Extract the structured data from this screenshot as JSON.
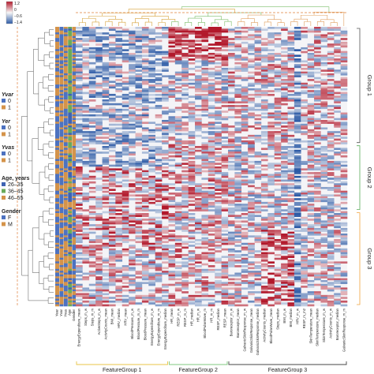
{
  "chart_data": {
    "type": "heatmap",
    "title": "",
    "xlabel": "",
    "ylabel": "",
    "color_scale": {
      "ticks": [
        "1.2",
        "0",
        "−0.6",
        "−1.4"
      ],
      "colors": [
        "#b2182b",
        "#f7f7f7",
        "#2c5aa6"
      ],
      "range": [
        -1.4,
        1.2
      ]
    },
    "annotation_columns": [
      "Year",
      "Yvar",
      "Yvas",
      "Age",
      "Gender"
    ],
    "feature_columns": [
      "EnergyExpenditure_mean",
      "Steps_m_w",
      "Steps_m_m",
      "ActiveSteps_m_w",
      "ActivityCounts_mean",
      "BMI_mean",
      "HRV_median",
      "HRV_mean",
      "BloodPressure_m_w",
      "BloodPressure_m_m",
      "BloodPressure_mean",
      "EnergyExpenditure_m_w",
      "EnergyExpenditure_m_m",
      "EnergyExpenditure_median",
      "HR_mean",
      "RESP_m_w",
      "RESP_m_m",
      "HR_median",
      "HR_m_w",
      "BloodPulseWave_m",
      "HR_m_m",
      "RESP_median",
      "RESP_mean",
      "Baroreceptor_m_w",
      "Baroreceptor_mean",
      "GalvanicSkinResponse_m_w",
      "GalvanicSkinResponse_mean",
      "GalvanicSkinResponse_median",
      "ActivityCounts_median",
      "BloodPulseWave_mean",
      "Steps_median",
      "BMI_m_w",
      "BMI_median",
      "HRV_m_w",
      "RESP_m_m2",
      "SkinTemperature_mean",
      "SkinTemperature_median",
      "SkinTemperature_m_w",
      "ActivityCounts_m_w",
      "Baroreceptor_median",
      "GalvanicSkinResponse_m_m"
    ],
    "feature_groups": [
      {
        "label": "FeatureGroup 1",
        "color": "#e8c547",
        "col_start": 0,
        "col_end": 13
      },
      {
        "label": "FeatureGroup 2",
        "color": "#7fc97f",
        "col_start": 14,
        "col_end": 22
      },
      {
        "label": "FeatureGroup 3",
        "color": "#444444",
        "col_start": 23,
        "col_end": 40
      }
    ],
    "row_groups": [
      {
        "label": "Group 1",
        "color": "#555555"
      },
      {
        "label": "Group 2",
        "color": "#5aab5a"
      },
      {
        "label": "Group 3",
        "color": "#f0a23c"
      }
    ],
    "legend": {
      "yvar_title": "Yvar",
      "yvar_items": [
        {
          "label": "0",
          "color": "#4d72c0"
        },
        {
          "label": "1",
          "color": "#d4934a"
        }
      ],
      "yer_title": "Yer",
      "yer_items": [
        {
          "label": "0",
          "color": "#4d72c0"
        },
        {
          "label": "1",
          "color": "#d4934a"
        }
      ],
      "yvas_title": "Yvas",
      "yvas_items": [
        {
          "label": "0",
          "color": "#4d72c0"
        },
        {
          "label": "1",
          "color": "#d4934a"
        }
      ],
      "age_title": "Age, years",
      "age_items": [
        {
          "label": "26–35",
          "color": "#3f63b3"
        },
        {
          "label": "36–45",
          "color": "#6aaa5a"
        },
        {
          "label": "46–55",
          "color": "#d4934a"
        }
      ],
      "gender_title": "Gender",
      "gender_items": [
        {
          "label": "F",
          "color": "#4d72c0"
        },
        {
          "label": "M",
          "color": "#d4934a"
        }
      ]
    },
    "grid": false
  }
}
